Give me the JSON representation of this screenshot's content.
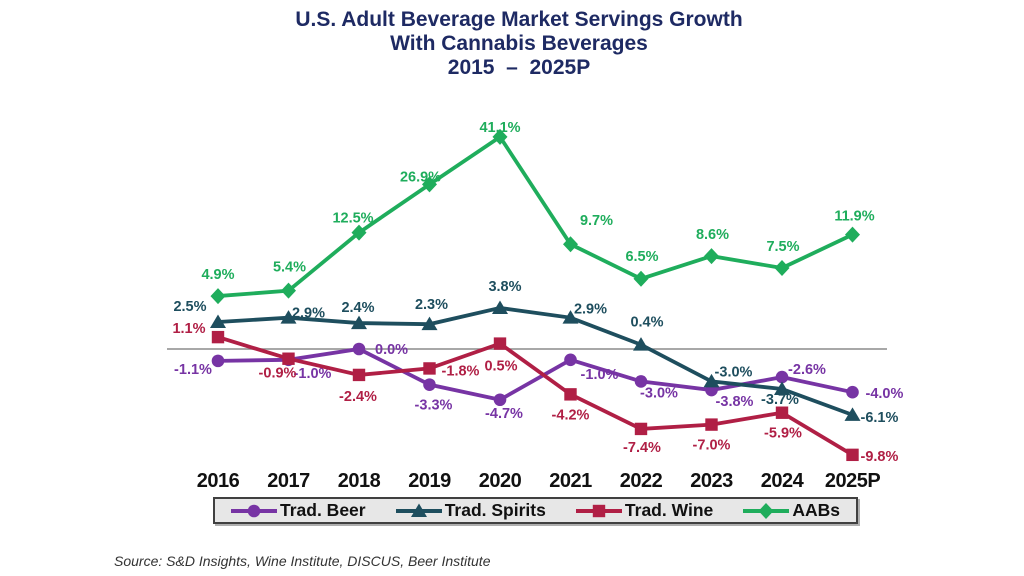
{
  "title": {
    "line1": "U.S. Adult Beverage Market Servings Growth",
    "line2": "With Cannabis Beverages",
    "line3": "2015  –  2025P"
  },
  "source": "Source: S&D Insights, Wine Institute, DISCUS, Beer Institute",
  "colors": {
    "title": "#1E2A63",
    "axis_line": "#8C8C8C",
    "x_labels": "#111111",
    "legend_background": "#E7E7E7",
    "legend_border": "#404040",
    "background": "#FFFFFF",
    "trad_beer": "#7734A4",
    "trad_spirits": "#1E4E5E",
    "trad_wine": "#B01F45",
    "aabs": "#1FAD5C"
  },
  "chart_data": {
    "type": "line",
    "title": "U.S. Adult Beverage Market Servings Growth With Cannabis Beverages 2015 – 2025P",
    "categories": [
      "2016",
      "2017",
      "2018",
      "2019",
      "2020",
      "2021",
      "2022",
      "2023",
      "2024",
      "2025P"
    ],
    "series": [
      {
        "name": "Trad. Beer",
        "marker": "circle",
        "color": "#7734A4",
        "values": [
          -1.1,
          -1.0,
          0.0,
          -3.3,
          -4.7,
          -1.0,
          -3.0,
          -3.8,
          -2.6,
          -4.0
        ],
        "labels": [
          "-1.1%",
          "-1.0%",
          "0.0%",
          "-3.3%",
          "-4.7%",
          "-1.0%",
          "-3.0%",
          "-3.8%",
          "-2.6%",
          "-4.0%"
        ]
      },
      {
        "name": "Trad. Spirits",
        "marker": "triangle",
        "color": "#1E4E5E",
        "values": [
          2.5,
          2.9,
          2.4,
          2.3,
          3.8,
          2.9,
          0.4,
          -3.0,
          -3.7,
          -6.1
        ],
        "labels": [
          "2.5%",
          "2.9%",
          "2.4%",
          "2.3%",
          "3.8%",
          "2.9%",
          "0.4%",
          "-3.0%",
          "-3.7%",
          "-6.1%"
        ]
      },
      {
        "name": "Trad. Wine",
        "marker": "square",
        "color": "#B01F45",
        "values": [
          1.1,
          -0.9,
          -2.4,
          -1.8,
          0.5,
          -4.2,
          -7.4,
          -7.0,
          -5.9,
          -9.8
        ],
        "labels": [
          "1.1%",
          "-0.9%",
          "-2.4%",
          "-1.8%",
          "0.5%",
          "-4.2%",
          "-7.4%",
          "-7.0%",
          "-5.9%",
          "-9.8%"
        ]
      },
      {
        "name": "AABs",
        "marker": "diamond",
        "color": "#1FAD5C",
        "values": [
          4.9,
          5.4,
          12.5,
          26.9,
          41.1,
          9.7,
          6.5,
          8.6,
          7.5,
          11.9
        ],
        "labels": [
          "4.9%",
          "5.4%",
          "12.5%",
          "26.9%",
          "41.1%",
          "9.7%",
          "6.5%",
          "8.6%",
          "7.5%",
          "11.9%"
        ]
      }
    ],
    "baseline": 0,
    "grid": false,
    "y_axis_visible": false,
    "legend_position": "bottom",
    "ylim": [
      -10,
      42
    ],
    "y_compression_note": "values above 10% are visually compressed in source image",
    "label_offsets": [
      [
        [
          -25,
          8,
          "m"
        ],
        [
          24,
          13,
          "m"
        ],
        [
          16,
          0,
          "s"
        ],
        [
          4,
          20,
          "m"
        ],
        [
          4,
          13,
          "m"
        ],
        [
          29,
          14,
          "m"
        ],
        [
          18,
          11,
          "m"
        ],
        [
          23,
          11,
          "m"
        ],
        [
          25,
          -8,
          "m"
        ],
        [
          13,
          1,
          "s"
        ]
      ],
      [
        [
          -28,
          -16,
          "m"
        ],
        [
          20,
          -5,
          "m"
        ],
        [
          -1,
          -16,
          "m"
        ],
        [
          2,
          -20,
          "m"
        ],
        [
          5,
          -22,
          "m"
        ],
        [
          20,
          -9,
          "m"
        ],
        [
          6,
          -23,
          "m"
        ],
        [
          22,
          -10,
          "m"
        ],
        [
          -2,
          10,
          "m"
        ],
        [
          8,
          2,
          "s"
        ]
      ],
      [
        [
          -29,
          -9,
          "m"
        ],
        [
          -11,
          14,
          "m"
        ],
        [
          -1,
          21,
          "m"
        ],
        [
          31,
          2,
          "m"
        ],
        [
          1,
          22,
          "m"
        ],
        [
          0,
          20,
          "m"
        ],
        [
          1,
          18,
          "m"
        ],
        [
          0,
          20,
          "m"
        ],
        [
          1,
          20,
          "m"
        ],
        [
          8,
          1,
          "s"
        ]
      ],
      [
        [
          0,
          -22,
          "m"
        ],
        [
          1,
          -24,
          "m"
        ],
        [
          -6,
          -15,
          "m"
        ],
        [
          -9,
          -8,
          "m"
        ],
        [
          0,
          -10,
          "m"
        ],
        [
          26,
          -24,
          "m"
        ],
        [
          1,
          -23,
          "m"
        ],
        [
          1,
          -22,
          "m"
        ],
        [
          1,
          -22,
          "m"
        ],
        [
          2,
          -19,
          "m"
        ]
      ]
    ]
  }
}
